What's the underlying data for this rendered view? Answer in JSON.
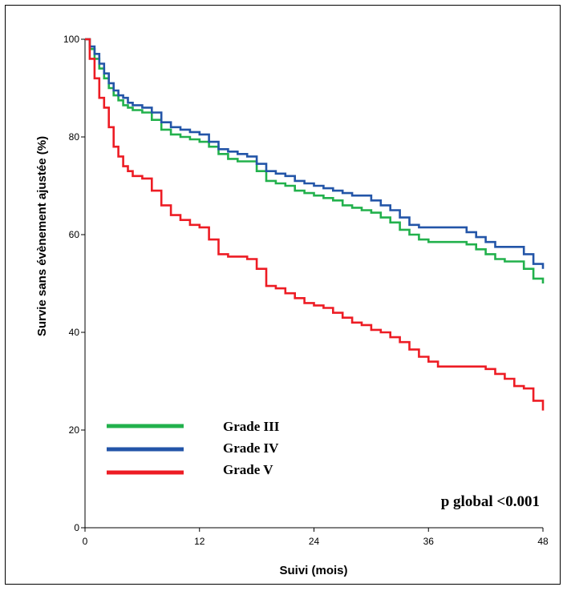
{
  "chart_data": {
    "type": "line",
    "step": true,
    "xlabel": "Suivi (mois)",
    "ylabel": "Survie sans évènement ajustée (%)",
    "xlim": [
      0,
      48
    ],
    "ylim": [
      0,
      100
    ],
    "xticks": [
      "0",
      "12",
      "24",
      "36",
      "48"
    ],
    "yticks": [
      "0",
      "20",
      "40",
      "60",
      "80",
      "100"
    ],
    "grid": false,
    "legend_position": "bottom-left",
    "annotation": "p global <0.001",
    "series": [
      {
        "name": "Grade III",
        "color": "#22b14c",
        "x": [
          0,
          0.5,
          1,
          1.5,
          2,
          2.5,
          3,
          3.5,
          4,
          4.5,
          5,
          6,
          7,
          8,
          9,
          10,
          11,
          12,
          13,
          14,
          15,
          16,
          17,
          18,
          19,
          20,
          21,
          22,
          23,
          24,
          25,
          26,
          27,
          28,
          29,
          30,
          31,
          32,
          33,
          34,
          35,
          36,
          37,
          38,
          39,
          40,
          41,
          42,
          43,
          44,
          45,
          46,
          47,
          48
        ],
        "y": [
          100,
          98,
          96,
          94,
          92,
          90,
          88.5,
          87.5,
          86.5,
          86,
          85.5,
          85,
          83.5,
          81.5,
          80.5,
          80,
          79.5,
          79,
          78,
          76.5,
          75.5,
          75,
          75,
          73,
          71,
          70.5,
          70,
          69,
          68.5,
          68,
          67.5,
          67,
          66,
          65.5,
          65,
          64.5,
          63.5,
          62.5,
          61,
          60,
          59,
          58.5,
          58.5,
          58.5,
          58.5,
          58,
          57,
          56,
          55,
          54.5,
          54.5,
          53,
          51,
          50
        ]
      },
      {
        "name": "Grade IV",
        "color": "#2355a8",
        "x": [
          0,
          0.5,
          1,
          1.5,
          2,
          2.5,
          3,
          3.5,
          4,
          4.5,
          5,
          6,
          7,
          8,
          9,
          10,
          11,
          12,
          13,
          14,
          15,
          16,
          17,
          18,
          19,
          20,
          21,
          22,
          23,
          24,
          25,
          26,
          27,
          28,
          29,
          30,
          31,
          32,
          33,
          34,
          35,
          36,
          37,
          38,
          39,
          40,
          41,
          42,
          43,
          44,
          45,
          46,
          47,
          48
        ],
        "y": [
          100,
          98.5,
          97,
          95,
          93,
          91,
          89.5,
          88.5,
          88,
          87,
          86.5,
          86,
          85,
          83,
          82,
          81.5,
          81,
          80.5,
          79,
          77.5,
          77,
          76.5,
          76,
          74.5,
          73,
          72.5,
          72,
          71,
          70.5,
          70,
          69.5,
          69,
          68.5,
          68,
          68,
          67,
          66,
          65,
          63.5,
          62,
          61.5,
          61.5,
          61.5,
          61.5,
          61.5,
          60.5,
          59.5,
          58.5,
          57.5,
          57.5,
          57.5,
          56,
          54,
          53
        ]
      },
      {
        "name": "Grade V",
        "color": "#ed1c24",
        "x": [
          0,
          0.5,
          1,
          1.5,
          2,
          2.5,
          3,
          3.5,
          4,
          4.5,
          5,
          6,
          7,
          8,
          9,
          10,
          11,
          12,
          13,
          14,
          15,
          16,
          17,
          18,
          19,
          20,
          21,
          22,
          23,
          24,
          25,
          26,
          27,
          28,
          29,
          30,
          31,
          32,
          33,
          34,
          35,
          36,
          37,
          38,
          39,
          40,
          41,
          42,
          43,
          44,
          45,
          46,
          47,
          48
        ],
        "y": [
          100,
          96,
          92,
          88,
          86,
          82,
          78,
          76,
          74,
          73,
          72,
          71.5,
          69,
          66,
          64,
          63,
          62,
          61.5,
          59,
          56,
          55.5,
          55.5,
          55,
          53,
          49.5,
          49,
          48,
          47,
          46,
          45.5,
          45,
          44,
          43,
          42,
          41.5,
          40.5,
          40,
          39,
          38,
          36.5,
          35,
          34,
          33,
          33,
          33,
          33,
          33,
          32.5,
          31.5,
          30.5,
          29,
          28.5,
          26,
          24
        ]
      }
    ]
  }
}
